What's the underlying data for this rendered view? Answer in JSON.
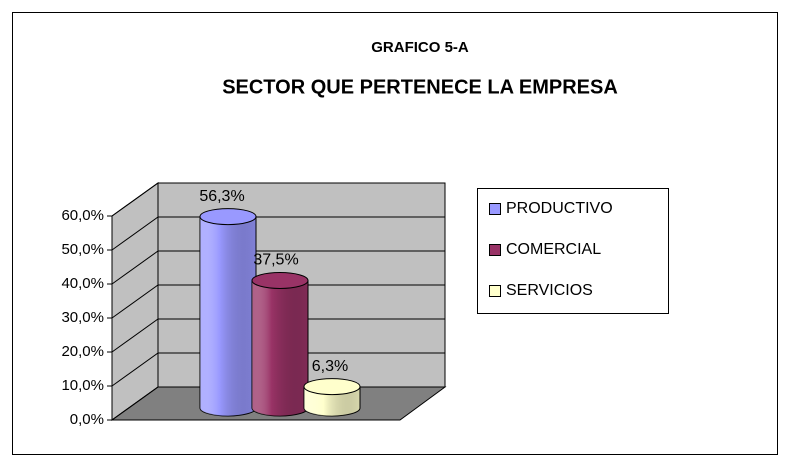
{
  "chart_data": {
    "type": "bar3d",
    "title": "GRAFICO 5-A",
    "subtitle": "SECTOR QUE PERTENECE LA EMPRESA",
    "series": [
      {
        "name": "PRODUCTIVO",
        "color": "#9999ff",
        "values": [
          56.3
        ],
        "value_labels": [
          "56,3%"
        ]
      },
      {
        "name": "COMERCIAL",
        "color": "#993366",
        "values": [
          37.5
        ],
        "value_labels": [
          "37,5%"
        ]
      },
      {
        "name": "SERVICIOS",
        "color": "#ffffcc",
        "values": [
          6.3
        ],
        "value_labels": [
          "6,3%"
        ]
      }
    ],
    "ylim": [
      0,
      60
    ],
    "yticks": [
      {
        "value": 0,
        "label": "0,0%"
      },
      {
        "value": 10,
        "label": "10,0%"
      },
      {
        "value": 20,
        "label": "20,0%"
      },
      {
        "value": 30,
        "label": "30,0%"
      },
      {
        "value": 40,
        "label": "40,0%"
      },
      {
        "value": 50,
        "label": "50,0%"
      },
      {
        "value": 60,
        "label": "60,0%"
      }
    ],
    "grid": true,
    "legend": "right"
  }
}
